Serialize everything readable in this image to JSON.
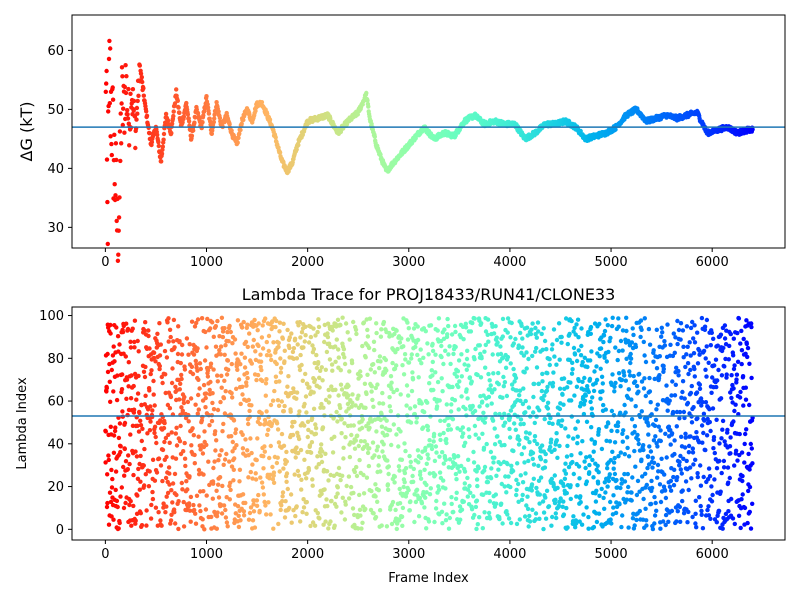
{
  "chart_data": [
    {
      "type": "scatter",
      "title": "",
      "xlabel": "",
      "ylabel": "ΔG (kT)",
      "xlim": [
        -330,
        6720
      ],
      "ylim": [
        26.5,
        66.0
      ],
      "xticks": [
        0,
        1000,
        2000,
        3000,
        4000,
        5000,
        6000
      ],
      "yticks": [
        30,
        40,
        50,
        60
      ],
      "reference_line_y": 47.0,
      "colormap": "rainbow",
      "frame_count": 6400,
      "grid": false,
      "series": [
        {
          "points": [
            [
              0,
              65
            ],
            [
              20,
              30
            ],
            [
              40,
              56
            ],
            [
              60,
              50
            ],
            [
              80,
              43
            ],
            [
              100,
              38
            ],
            [
              120,
              29
            ],
            [
              140,
              35
            ],
            [
              160,
              52
            ],
            [
              180,
              49
            ],
            [
              200,
              55
            ],
            [
              230,
              48
            ],
            [
              260,
              53
            ],
            [
              300,
              46
            ],
            [
              340,
              57
            ],
            [
              400,
              50
            ],
            [
              450,
              44
            ],
            [
              500,
              47
            ],
            [
              550,
              41
            ],
            [
              600,
              49
            ],
            [
              650,
              46
            ],
            [
              700,
              53
            ],
            [
              750,
              47
            ],
            [
              800,
              51
            ],
            [
              850,
              45
            ],
            [
              900,
              50
            ],
            [
              950,
              47
            ],
            [
              1000,
              52
            ],
            [
              1050,
              46
            ],
            [
              1100,
              51
            ],
            [
              1150,
              47
            ],
            [
              1200,
              49
            ],
            [
              1250,
              46
            ],
            [
              1300,
              44
            ],
            [
              1350,
              48
            ],
            [
              1400,
              50
            ],
            [
              1450,
              48
            ],
            [
              1500,
              51
            ],
            [
              1550,
              51
            ],
            [
              1600,
              49
            ],
            [
              1650,
              47
            ],
            [
              1700,
              44
            ],
            [
              1750,
              41
            ],
            [
              1800,
              39.5
            ],
            [
              1850,
              41
            ],
            [
              1900,
              44
            ],
            [
              1950,
              46
            ],
            [
              2000,
              48
            ],
            [
              2100,
              48.5
            ],
            [
              2200,
              49
            ],
            [
              2300,
              46
            ],
            [
              2400,
              48
            ],
            [
              2500,
              49.5
            ],
            [
              2580,
              52.5
            ],
            [
              2620,
              48
            ],
            [
              2680,
              44
            ],
            [
              2720,
              42
            ],
            [
              2780,
              39.5
            ],
            [
              2850,
              41
            ],
            [
              2950,
              43
            ],
            [
              3050,
              45
            ],
            [
              3150,
              47
            ],
            [
              3250,
              45
            ],
            [
              3350,
              46
            ],
            [
              3450,
              45.5
            ],
            [
              3550,
              48
            ],
            [
              3650,
              49
            ],
            [
              3750,
              47.5
            ],
            [
              3850,
              48
            ],
            [
              3950,
              47.5
            ],
            [
              4050,
              47.5
            ],
            [
              4150,
              45
            ],
            [
              4250,
              46
            ],
            [
              4350,
              47.5
            ],
            [
              4450,
              47.5
            ],
            [
              4550,
              48
            ],
            [
              4650,
              47
            ],
            [
              4750,
              45
            ],
            [
              4850,
              45.5
            ],
            [
              4950,
              46
            ],
            [
              5050,
              47
            ],
            [
              5150,
              49
            ],
            [
              5250,
              50
            ],
            [
              5350,
              48
            ],
            [
              5450,
              48.5
            ],
            [
              5550,
              49
            ],
            [
              5650,
              48.5
            ],
            [
              5750,
              49
            ],
            [
              5850,
              49.5
            ],
            [
              5950,
              46
            ],
            [
              6050,
              46.5
            ],
            [
              6150,
              47
            ],
            [
              6250,
              46
            ],
            [
              6350,
              46.5
            ],
            [
              6400,
              46.5
            ]
          ]
        }
      ]
    },
    {
      "type": "scatter",
      "title": "Lambda Trace for PROJ18433/RUN41/CLONE33",
      "xlabel": "Frame Index",
      "ylabel": "Lambda Index",
      "xlim": [
        -330,
        6720
      ],
      "ylim": [
        -5,
        104
      ],
      "xticks": [
        0,
        1000,
        2000,
        3000,
        4000,
        5000,
        6000
      ],
      "yticks": [
        0,
        20,
        40,
        60,
        80,
        100
      ],
      "reference_line_y": 53,
      "colormap": "rainbow",
      "frame_count": 6400,
      "grid": false,
      "value_range": [
        0,
        99
      ]
    }
  ]
}
